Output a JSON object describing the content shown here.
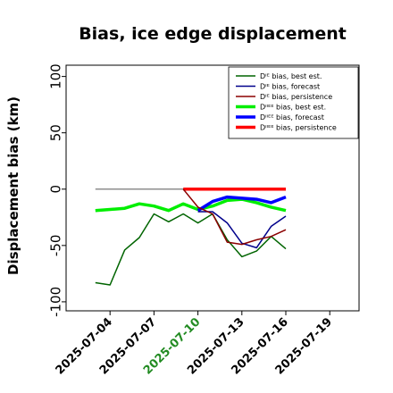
{
  "chart_data": {
    "type": "line",
    "title": "Bias, ice edge displacement",
    "ylabel": "Displacement bias (km)",
    "xlabel": "",
    "ylim": [
      -108,
      110
    ],
    "xlim": [
      "2025-07-01",
      "2025-07-21"
    ],
    "yticks": [
      100,
      50,
      0,
      -50,
      -100
    ],
    "xticks": [
      "2025-07-04",
      "2025-07-07",
      "2025-07-10",
      "2025-07-13",
      "2025-07-16",
      "2025-07-19"
    ],
    "highlight_xtick": "2025-07-10",
    "highlight_color": "#228b22",
    "grid": false,
    "legend_position": "top-right",
    "zero_line": {
      "y": 0,
      "x": [
        "2025-07-03",
        "2025-07-16"
      ],
      "color": "#777777"
    },
    "series": [
      {
        "name": "Dᴵᴱ bias, best est.",
        "color": "#006400",
        "width": 1.5,
        "x": [
          "2025-07-03",
          "2025-07-04",
          "2025-07-05",
          "2025-07-06",
          "2025-07-07",
          "2025-07-08",
          "2025-07-09",
          "2025-07-10",
          "2025-07-11",
          "2025-07-12",
          "2025-07-13",
          "2025-07-14",
          "2025-07-15",
          "2025-07-16"
        ],
        "y": [
          -83,
          -85,
          -54,
          -43,
          -22,
          -29,
          -22,
          -30,
          -22,
          -45,
          -60,
          -55,
          -42,
          -53
        ]
      },
      {
        "name": "Dᴵᴱ bias, forecast",
        "color": "#00008b",
        "width": 1.5,
        "x": [
          "2025-07-10",
          "2025-07-11",
          "2025-07-12",
          "2025-07-13",
          "2025-07-14",
          "2025-07-15",
          "2025-07-16"
        ],
        "y": [
          -20,
          -20,
          -30,
          -48,
          -52,
          -33,
          -24
        ]
      },
      {
        "name": "Dᴵᴱ bias, persistence",
        "color": "#8b0000",
        "width": 1.5,
        "x": [
          "2025-07-09",
          "2025-07-10",
          "2025-07-11",
          "2025-07-12",
          "2025-07-13",
          "2025-07-14",
          "2025-07-15",
          "2025-07-16"
        ],
        "y": [
          0,
          -16,
          -22,
          -47,
          -49,
          -45,
          -42,
          -36
        ]
      },
      {
        "name": "Dᴵᴵᴱᴱ bias, best est.",
        "color": "#00ee00",
        "width": 3.5,
        "x": [
          "2025-07-03",
          "2025-07-04",
          "2025-07-05",
          "2025-07-06",
          "2025-07-07",
          "2025-07-08",
          "2025-07-09",
          "2025-07-10",
          "2025-07-11",
          "2025-07-12",
          "2025-07-13",
          "2025-07-14",
          "2025-07-15",
          "2025-07-16"
        ],
        "y": [
          -19,
          -18,
          -17,
          -13,
          -15,
          -19,
          -13,
          -18,
          -15,
          -10,
          -9,
          -12,
          -16,
          -19
        ]
      },
      {
        "name": "Dᴵᴵᴱᴱ bias, forecast",
        "color": "#0000ff",
        "width": 3.5,
        "x": [
          "2025-07-10",
          "2025-07-11",
          "2025-07-12",
          "2025-07-13",
          "2025-07-14",
          "2025-07-15",
          "2025-07-16"
        ],
        "y": [
          -19,
          -11,
          -7,
          -8,
          -9,
          -12,
          -7
        ]
      },
      {
        "name": "Dᴵᴵᴱᴱ bias, persistence",
        "color": "#ff0000",
        "width": 3.5,
        "x": [
          "2025-07-09",
          "2025-07-10",
          "2025-07-11",
          "2025-07-12",
          "2025-07-13",
          "2025-07-14",
          "2025-07-15",
          "2025-07-16"
        ],
        "y": [
          0,
          0,
          0,
          0,
          0,
          0,
          0,
          0
        ]
      }
    ]
  }
}
